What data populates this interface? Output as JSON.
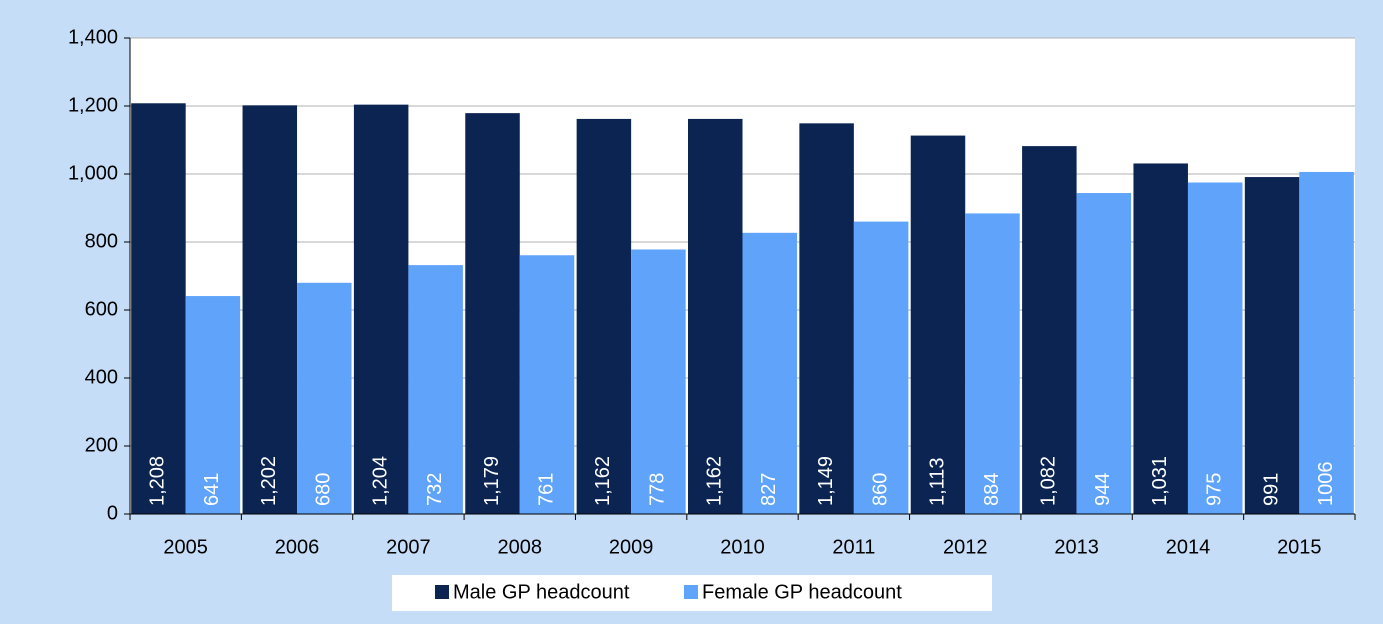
{
  "chart_data": {
    "type": "bar",
    "categories": [
      "2005",
      "2006",
      "2007",
      "2008",
      "2009",
      "2010",
      "2011",
      "2012",
      "2013",
      "2014",
      "2015"
    ],
    "series": [
      {
        "name": "Male GP headcount",
        "color": "#0b2452",
        "values": [
          1208,
          1202,
          1204,
          1179,
          1162,
          1162,
          1149,
          1113,
          1082,
          1031,
          991
        ],
        "value_labels": [
          "1,208",
          "1,202",
          "1,204",
          "1,179",
          "1,162",
          "1,162",
          "1,149",
          "1,113",
          "1,082",
          "1,031",
          "991"
        ]
      },
      {
        "name": "Female GP headcount",
        "color": "#5fa3fb",
        "values": [
          641,
          680,
          732,
          761,
          778,
          827,
          860,
          884,
          944,
          975,
          1006
        ],
        "value_labels": [
          "641",
          "680",
          "732",
          "761",
          "778",
          "827",
          "860",
          "884",
          "944",
          "975",
          "1006"
        ]
      }
    ],
    "ylim": [
      0,
      1400
    ],
    "yticks": [
      0,
      200,
      400,
      600,
      800,
      {
        "value": 1000,
        "label": "1,000"
      },
      {
        "value": 1200,
        "label": "1,200"
      },
      {
        "value": 1400,
        "label": "1,400"
      }
    ],
    "grid": true,
    "legend": "bottom"
  }
}
